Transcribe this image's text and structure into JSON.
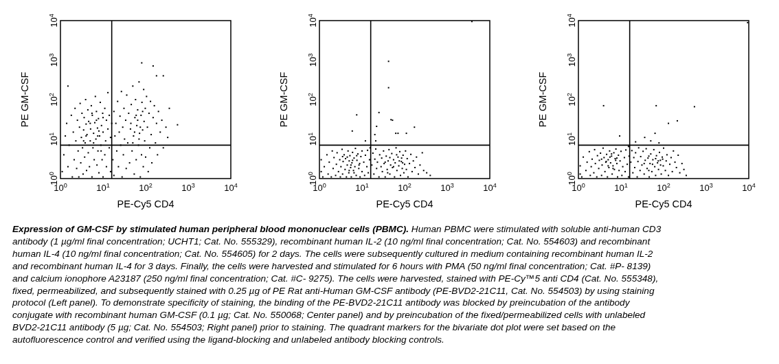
{
  "chart_data": [
    {
      "type": "scatter",
      "xlabel": "PE-Cy5 CD4",
      "ylabel": "PE GM-CSF",
      "log": "xy",
      "marker": "square",
      "color": "#000000",
      "xlim": [
        1,
        10000
      ],
      "ylim": [
        1,
        10000
      ],
      "xticks": [
        {
          "value": 1,
          "label": "10$^{0}$"
        },
        {
          "value": 10,
          "label": "10$^{1}$"
        },
        {
          "value": 100,
          "label": "10$^{2}$"
        },
        {
          "value": 1000,
          "label": "10$^{3}$"
        },
        {
          "value": 10000,
          "label": "10$^{4}$"
        }
      ],
      "yticks": [
        {
          "value": 1,
          "label": "10$^{0}$"
        },
        {
          "value": 10,
          "label": "10$^{1}$"
        },
        {
          "value": 100,
          "label": "10$^{2}$"
        },
        {
          "value": 1000,
          "label": "10$^{3}$"
        },
        {
          "value": 10000,
          "label": "10$^{4}$"
        }
      ],
      "ref_lines": [
        {
          "axis": "x",
          "value": 16,
          "color": "#000000"
        },
        {
          "axis": "y",
          "value": 7,
          "color": "#000000"
        }
      ],
      "x": [
        1.1,
        1.2,
        1.3,
        1.4,
        1.5,
        1.6,
        1.8,
        1.9,
        2,
        2.1,
        2.2,
        2.3,
        2.4,
        2.5,
        2.6,
        2.7,
        2.8,
        2.9,
        3,
        3.1,
        3.2,
        3.3,
        3.4,
        3.5,
        3.6,
        3.7,
        3.8,
        3.9,
        4,
        4.1,
        4.2,
        4.4,
        4.5,
        4.6,
        4.8,
        5,
        5.1,
        5.3,
        5.5,
        5.6,
        5.8,
        6,
        6.2,
        6.4,
        6.6,
        6.8,
        7,
        7.2,
        7.4,
        7.6,
        7.8,
        8,
        8.3,
        8.6,
        8.9,
        9.2,
        9.5,
        9.8,
        10,
        10,
        11,
        11,
        11.5,
        12,
        12,
        13,
        13,
        14,
        14,
        15,
        15,
        16,
        1.5,
        5,
        6,
        7,
        8,
        9,
        4,
        5.5,
        7.5,
        3.5,
        10,
        17,
        18,
        18,
        19,
        20,
        21,
        22,
        23,
        24,
        25,
        26,
        27,
        28,
        29,
        30,
        31,
        32,
        34,
        35,
        36,
        38,
        40,
        42,
        44,
        46,
        48,
        50,
        52,
        54,
        56,
        58,
        60,
        62,
        65,
        68,
        70,
        72,
        75,
        78,
        80,
        82,
        85,
        88,
        90,
        92,
        95,
        98,
        100,
        105,
        110,
        115,
        120,
        125,
        130,
        135,
        140,
        150,
        160,
        170,
        180,
        190,
        200,
        220,
        240,
        260,
        300,
        330,
        81,
        150,
        180,
        260,
        560,
        360,
        45,
        55,
        65,
        75,
        85,
        50,
        70,
        60
      ],
      "values": [
        1.5,
        4,
        12,
        25,
        2,
        7,
        40,
        1.1,
        15,
        3,
        60,
        9,
        1.8,
        30,
        5,
        1.1,
        20,
        80,
        2.5,
        11,
        45,
        6,
        1.3,
        17,
        35,
        3.5,
        8,
        100,
        24,
        1.6,
        13,
        55,
        4.5,
        28,
        2,
        9,
        18,
        70,
        1.1,
        40,
        6,
        14,
        3,
        26,
        120,
        10,
        50,
        2.2,
        19,
        5,
        33,
        1.4,
        12,
        85,
        7,
        22,
        3,
        45,
        1.1,
        15,
        60,
        4,
        9,
        30,
        2,
        150,
        18,
        6,
        40,
        1.5,
        11,
        25,
        220,
        25,
        8,
        30,
        16,
        5,
        12,
        45,
        12,
        9,
        35,
        3,
        50,
        1.2,
        12,
        25,
        5,
        90,
        2,
        15,
        38,
        7,
        160,
        1.1,
        20,
        4,
        60,
        10,
        30,
        1.8,
        130,
        8,
        45,
        2.5,
        18,
        75,
        5,
        220,
        12,
        1.3,
        35,
        100,
        3,
        22,
        55,
        7,
        280,
        14,
        1.1,
        40,
        4,
        85,
        17,
        2,
        180,
        28,
        9,
        60,
        3.5,
        120,
        20,
        1.5,
        45,
        6,
        90,
        13,
        2.5,
        35,
        70,
        8,
        25,
        4,
        50,
        15,
        30,
        6,
        20,
        11,
        850,
        710,
        400,
        400,
        23,
        60,
        25,
        15,
        30,
        20,
        50,
        8,
        10,
        40
      ]
    },
    {
      "type": "scatter",
      "xlabel": "PE-Cy5 CD4",
      "ylabel": "PE GM-CSF",
      "log": "xy",
      "marker": "square",
      "color": "#000000",
      "xlim": [
        1,
        10000
      ],
      "ylim": [
        1,
        10000
      ],
      "xticks": [
        {
          "value": 1,
          "label": "10$^{0}$"
        },
        {
          "value": 10,
          "label": "10$^{1}$"
        },
        {
          "value": 100,
          "label": "10$^{2}$"
        },
        {
          "value": 1000,
          "label": "10$^{3}$"
        },
        {
          "value": 10000,
          "label": "10$^{4}$"
        }
      ],
      "yticks": [
        {
          "value": 1,
          "label": "10$^{0}$"
        },
        {
          "value": 10,
          "label": "10$^{1}$"
        },
        {
          "value": 100,
          "label": "10$^{2}$"
        },
        {
          "value": 1000,
          "label": "10$^{3}$"
        },
        {
          "value": 10000,
          "label": "10$^{4}$"
        }
      ],
      "ref_lines": [
        {
          "axis": "x",
          "value": 16,
          "color": "#000000"
        },
        {
          "axis": "y",
          "value": 7,
          "color": "#000000"
        }
      ],
      "x": [
        1.1,
        1.1,
        1.2,
        1.3,
        1.5,
        1.6,
        1.7,
        1.9,
        2,
        2.1,
        2.2,
        2.4,
        2.5,
        2.6,
        2.8,
        3,
        3.1,
        3.2,
        3.4,
        3.5,
        3.6,
        3.8,
        4,
        4.1,
        4.3,
        4.5,
        4.7,
        4.9,
        5,
        5.2,
        5.4,
        5.6,
        5.8,
        6,
        6.3,
        6.5,
        6.8,
        7,
        7.3,
        7.6,
        8,
        8.4,
        8.8,
        9,
        9.4,
        10,
        10,
        11,
        11.5,
        12,
        13,
        13.5,
        14,
        15,
        15.5,
        17,
        18,
        19,
        20,
        21,
        22,
        23,
        25,
        26,
        28,
        29,
        30,
        32,
        33,
        35,
        37,
        39,
        41,
        43,
        45,
        47,
        50,
        52,
        55,
        58,
        60,
        63,
        66,
        70,
        73,
        77,
        80,
        84,
        88,
        92,
        96,
        100,
        105,
        110,
        115,
        120,
        130,
        140,
        150,
        160,
        175,
        190,
        210,
        230,
        260,
        280,
        330,
        400,
        42,
        42,
        25,
        48,
        52,
        22,
        7.5,
        5.9,
        170,
        62,
        70,
        110,
        20,
        3800,
        12,
        21,
        4.5,
        5.5,
        6.5,
        7.5,
        5,
        6,
        8.5,
        3.5,
        35,
        45,
        55,
        65,
        75,
        85,
        40,
        90
      ],
      "values": [
        1.5,
        3,
        1.1,
        2,
        4,
        1.3,
        2.6,
        1.1,
        5,
        1.8,
        3.4,
        1.2,
        2.3,
        4.5,
        1.5,
        3,
        1.1,
        2,
        5.5,
        1.3,
        2.7,
        4,
        1.7,
        3.2,
        1.1,
        2.2,
        5,
        1.4,
        2.8,
        3.8,
        1.9,
        1.1,
        2.5,
        4.6,
        1.6,
        3.3,
        2,
        5.8,
        1.2,
        2.9,
        4.2,
        1.8,
        2.4,
        1.1,
        3.6,
        1.5,
        5,
        2.6,
        1.2,
        3.9,
        2,
        5.2,
        1.4,
        3,
        6,
        2.2,
        4.4,
        1.3,
        3.1,
        5.6,
        1.8,
        2.6,
        1.1,
        4,
        2,
        3.3,
        1.5,
        5,
        2.4,
        1.1,
        3.7,
        1.7,
        2.8,
        5.4,
        1.3,
        2.2,
        4.3,
        1.9,
        3,
        1.1,
        2.5,
        6,
        1.6,
        3.5,
        2.1,
        4.8,
        1.2,
        2.7,
        1.8,
        3.9,
        1.4,
        2.3,
        5,
        1.7,
        3.2,
        1.1,
        2.4,
        4.1,
        1.5,
        2.8,
        1.9,
        3.5,
        1.3,
        2.2,
        4.5,
        1.6,
        1.4,
        1.2,
        930,
        200,
        47,
        31,
        30,
        21,
        41,
        16,
        20,
        14,
        14,
        14,
        13,
        9500,
        9,
        9,
        3.5,
        2.2,
        1.4,
        3.8,
        1.6,
        2.9,
        2.2,
        3.6,
        2.6,
        3.4,
        2,
        4,
        2.8,
        3.3,
        1.4,
        2.5
      ]
    },
    {
      "type": "scatter",
      "xlabel": "PE-Cy5 CD4",
      "ylabel": "PE GM-CSF",
      "log": "xy",
      "marker": "square",
      "color": "#000000",
      "xlim": [
        1,
        10000
      ],
      "ylim": [
        1,
        10000
      ],
      "xticks": [
        {
          "value": 1,
          "label": "10$^{0}$"
        },
        {
          "value": 10,
          "label": "10$^{1}$"
        },
        {
          "value": 100,
          "label": "10$^{2}$"
        },
        {
          "value": 1000,
          "label": "10$^{3}$"
        },
        {
          "value": 10000,
          "label": "10$^{4}$"
        }
      ],
      "yticks": [
        {
          "value": 1,
          "label": "10$^{0}$"
        },
        {
          "value": 10,
          "label": "10$^{1}$"
        },
        {
          "value": 100,
          "label": "10$^{2}$"
        },
        {
          "value": 1000,
          "label": "10$^{3}$"
        },
        {
          "value": 10000,
          "label": "10$^{4}$"
        }
      ],
      "ref_lines": [
        {
          "axis": "x",
          "value": 16,
          "color": "#000000"
        },
        {
          "axis": "y",
          "value": 7,
          "color": "#000000"
        }
      ],
      "x": [
        1.1,
        1.1,
        1.2,
        1.3,
        1.5,
        1.6,
        1.8,
        1.9,
        2,
        2.1,
        2.3,
        2.4,
        2.5,
        2.7,
        2.8,
        3,
        3.1,
        3.3,
        3.5,
        3.6,
        3.8,
        4,
        4.2,
        4.4,
        4.6,
        4.8,
        5,
        5.2,
        5.4,
        5.7,
        6,
        6.2,
        6.5,
        6.8,
        7,
        7.3,
        7.6,
        8,
        8.3,
        8.7,
        9,
        9.5,
        10,
        10.5,
        11,
        12,
        12.5,
        13,
        14,
        15,
        15.5,
        17,
        18,
        19,
        20,
        21,
        22,
        24,
        25,
        26,
        28,
        29,
        31,
        33,
        35,
        37,
        39,
        41,
        43,
        46,
        48,
        50,
        53,
        56,
        59,
        62,
        65,
        68,
        72,
        76,
        80,
        84,
        88,
        93,
        98,
        100,
        110,
        115,
        120,
        130,
        140,
        150,
        160,
        170,
        185,
        200,
        220,
        240,
        270,
        300,
        340,
        3.9,
        67,
        530,
        130,
        210,
        63,
        9.3,
        9400,
        36,
        50,
        78,
        22,
        15,
        4.5,
        5.5,
        6.5,
        7.5,
        5,
        6,
        8,
        3.5,
        35,
        45,
        55,
        65,
        75,
        85,
        45,
        95
      ],
      "values": [
        1.3,
        2.1,
        1.1,
        3.5,
        1.6,
        2.6,
        4.8,
        1.2,
        2,
        3.1,
        1.4,
        5.4,
        2.4,
        1.1,
        3.8,
        1.8,
        2.9,
        4.4,
        1.2,
        2.2,
        5.9,
        3.4,
        1.5,
        2.6,
        4.1,
        1.1,
        3,
        1.9,
        5,
        2.5,
        3.7,
        1.3,
        2.1,
        4.5,
        1.7,
        3.2,
        5.6,
        2.4,
        1.1,
        3.9,
        1.6,
        2.8,
        4.9,
        1.2,
        2,
        3.4,
        1.5,
        5.3,
        2.3,
        1.1,
        3.7,
        2.6,
        5.1,
        1.4,
        3.4,
        1.9,
        4.5,
        1.1,
        2.7,
        6,
        1.6,
        3.6,
        2.2,
        4.9,
        1.3,
        2.9,
        5.7,
        1.8,
        3.3,
        1.1,
        2.4,
        4.2,
        1.5,
        3,
        5.4,
        2,
        1.2,
        3.8,
        2.5,
        1.7,
        4.6,
        2.9,
        1.3,
        3.5,
        2.1,
        5.9,
        1.6,
        2.8,
        4,
        1.2,
        2.3,
        3.4,
        1.5,
        5,
        2.6,
        1.9,
        3.9,
        1.4,
        2.4,
        1.7,
        1.2,
        70,
        70,
        66,
        25,
        29,
        14,
        12,
        8900,
        11,
        9,
        8,
        8.5,
        6.5,
        2.7,
        3.5,
        1.8,
        2.9,
        2.1,
        4.2,
        3.3,
        3.1,
        2.4,
        3.7,
        2.3,
        3.2,
        2.8,
        2.2,
        1.6,
        3.1
      ]
    },
    {
      "type": "other",
      "title": "Expression of GM-CSF by stimulated human peripheral blood mononuclear cells (PBMC).",
      "annotations": [
        "Human PBMC were stimulated with soluble anti-human CD3 antibody (1 µg/ml final concentration; UCHT1; Cat. No. 555329), recombinant human IL-2 (10 ng/ml final concentration; Cat. No. 554603) and recombinant human IL-4 (10 ng/ml final concentration; Cat. No. 554605) for 2 days. The cells were subsequently cultured in medium containing recombinant human IL-2 and recombinant human IL-4 for 3 days. Finally, the cells were harvested and stimulated for 6 hours with PMA (50 ng/ml final concentration; Cat. #P- 8139) and calcium ionophore A23187 (250 ng/ml final concentration; Cat. #C- 9275). The cells were harvested, stained with PE-Cy™5 anti CD4 (Cat. No. 555348), fixed, permeabilized, and subsequently stained with 0.25 µg of PE Rat anti-Human GM-CSF antibody (PE-BVD2-21C11, Cat. No. 554503) by using staining protocol (Left panel). To demonstrate specificity of staining, the binding of the PE-BVD2-21C11 antibody was blocked by preincubation of the antibody conjugate with recombinant human GM-CSF (0.1 µg; Cat. No. 550068; Center panel) and by preincubation of the fixed/permeabilized cells with unlabeled BVD2-21C11 antibody (5 µg; Cat. No. 554503; Right panel) prior to staining. The quadrant markers for the bivariate dot plot were set based on the autofluorescence control and verified using the ligand-blocking and unlabeled antibody blocking controls."
      ]
    }
  ]
}
